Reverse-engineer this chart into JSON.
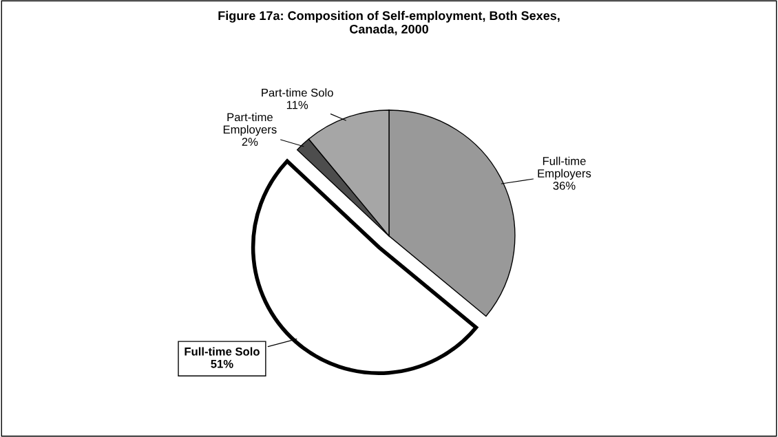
{
  "chart_data": {
    "type": "pie",
    "title": "Figure 17a: Composition of Self-employment, Both Sexes,\nCanada, 2000",
    "categories": [
      "Full-time Employers",
      "Full-time Solo",
      "Part-time Employers",
      "Part-time Solo"
    ],
    "values": [
      36,
      51,
      2,
      11
    ],
    "value_labels": [
      "36%",
      "51%",
      "2%",
      "11%"
    ],
    "colors": [
      "#999999",
      "#ffffff",
      "#4d4d4d",
      "#a6a6a6"
    ]
  }
}
